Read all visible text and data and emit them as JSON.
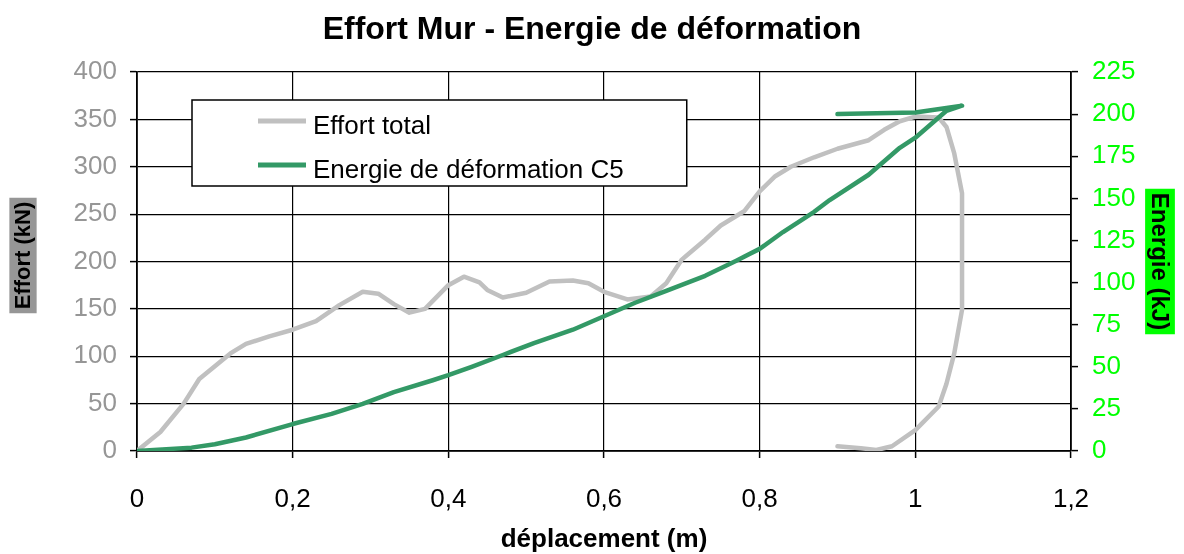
{
  "chart_data": {
    "type": "line",
    "title": "Effort Mur - Energie de déformation",
    "xlabel": "déplacement (m)",
    "ylabel": "Effort (kN)",
    "y2label": "Energie (kJ)",
    "xlim": [
      0,
      1.2
    ],
    "xticks": [
      0,
      {
        "value": 0.2,
        "label": "0,2"
      },
      {
        "value": 0.4,
        "label": "0,4"
      },
      {
        "value": 0.6,
        "label": "0,6"
      },
      {
        "value": 0.8,
        "label": "0,8"
      },
      1,
      {
        "value": 1.2,
        "label": "1,2"
      }
    ],
    "ylim": [
      0,
      400
    ],
    "yticks": [
      0,
      50,
      100,
      150,
      200,
      250,
      300,
      350,
      400
    ],
    "y2lim": [
      0,
      225
    ],
    "y2ticks": [
      0,
      25,
      50,
      75,
      100,
      125,
      150,
      175,
      200,
      225
    ],
    "grid": true,
    "legend": "top left",
    "series": [
      {
        "name": "Effort total",
        "color": "#c0c0c0",
        "x": [
          0,
          0.03,
          0.06,
          0.08,
          0.12,
          0.14,
          0.17,
          0.2,
          0.23,
          0.26,
          0.29,
          0.31,
          0.33,
          0.35,
          0.37,
          0.4,
          0.42,
          0.44,
          0.45,
          0.47,
          0.5,
          0.53,
          0.56,
          0.58,
          0.6,
          0.63,
          0.66,
          0.68,
          0.7,
          0.73,
          0.75,
          0.78,
          0.8,
          0.82,
          0.84,
          0.87,
          0.9,
          0.94,
          0.96,
          0.98,
          1.0,
          1.03,
          1.04,
          1.05,
          1.06,
          1.06,
          1.05,
          1.04,
          1.03,
          1.0,
          0.97,
          0.95,
          0.93,
          0.9
        ],
        "values": [
          0,
          20,
          50,
          76,
          103,
          113,
          121,
          128,
          137,
          154,
          168,
          166,
          155,
          146,
          150,
          175,
          184,
          178,
          170,
          162,
          167,
          179,
          180,
          177,
          168,
          160,
          163,
          177,
          202,
          223,
          238,
          253,
          274,
          290,
          300,
          310,
          319,
          328,
          339,
          348,
          353,
          352,
          342,
          314,
          272,
          149,
          103,
          71,
          47,
          22,
          5,
          1,
          3,
          5
        ]
      },
      {
        "name": "Energie de déformation C5",
        "color": "#339966",
        "axis": "y2",
        "x": [
          0,
          0.07,
          0.1,
          0.14,
          0.2,
          0.25,
          0.29,
          0.33,
          0.38,
          0.4,
          0.43,
          0.47,
          0.51,
          0.56,
          0.6,
          0.64,
          0.68,
          0.73,
          0.77,
          0.8,
          0.83,
          0.87,
          0.89,
          0.94,
          0.98,
          1.0,
          1.02,
          1.04,
          1.06,
          1.0,
          0.9
        ],
        "values": [
          0,
          2,
          4,
          8,
          16,
          22,
          28,
          35,
          42,
          45,
          50,
          57,
          64,
          72,
          80,
          88,
          95,
          104,
          113,
          120,
          130,
          142,
          149,
          164,
          180,
          186,
          194,
          202,
          205,
          201,
          200
        ]
      }
    ]
  }
}
